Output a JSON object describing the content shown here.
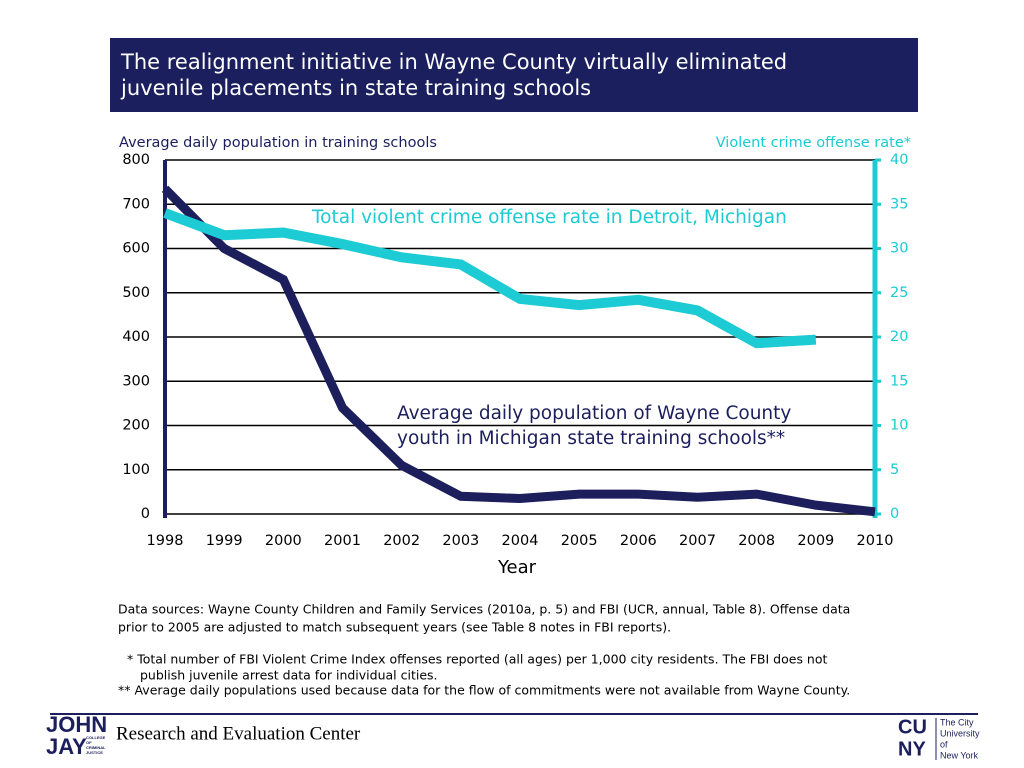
{
  "header": {
    "title": [
      "The realignment initiative in Wayne County virtually eliminated",
      "juvenile placements in state training schools"
    ]
  },
  "chart_data": {
    "type": "line",
    "ylabel": "Average daily population in training schools",
    "y2label": "Violent crime offense rate*",
    "xlabel": "Year",
    "categories": [
      "1998",
      "1999",
      "2000",
      "2001",
      "2002",
      "2003",
      "2004",
      "2005",
      "2006",
      "2007",
      "2008",
      "2009",
      "2010"
    ],
    "series": [
      {
        "name": "Average daily population of Wayne County youth in Michigan state training schools**",
        "color": "#1c1f5c",
        "axis": "y",
        "values": [
          735,
          600,
          530,
          240,
          110,
          40,
          35,
          45,
          45,
          38,
          45,
          20,
          5
        ]
      },
      {
        "name": "Total violent crime offense rate in Detroit, Michigan",
        "color": "#1ccbd3",
        "axis": "y2",
        "values": [
          34,
          31.5,
          31.8,
          30.5,
          29,
          28.2,
          24.3,
          23.6,
          24.2,
          23,
          19.3,
          19.7,
          null
        ]
      }
    ],
    "annotations": [
      {
        "lines": [
          "Total violent crime offense rate in Detroit, Michigan"
        ],
        "series": 1
      },
      {
        "lines": [
          "Average daily population of Wayne County",
          "youth in Michigan state training schools**"
        ],
        "series": 0
      }
    ],
    "ylim": [
      0,
      800
    ],
    "yticks": [
      0,
      100,
      200,
      300,
      400,
      500,
      600,
      700,
      800
    ],
    "y2lim": [
      0,
      40
    ],
    "y2ticks": [
      0,
      5,
      10,
      15,
      20,
      25,
      30,
      35,
      40
    ],
    "grid": true
  },
  "notes": {
    "sources": [
      "Data sources: Wayne County Children and Family Services (2010a, p. 5) and FBI (UCR, annual, Table 8). Offense data",
      "prior to 2005 are adjusted to match subsequent years (see Table 8 notes in FBI reports)."
    ],
    "footnotes": [
      "* Total number of FBI Violent Crime Index offenses reported (all ages) per 1,000 city residents. The FBI does not",
      "publish juvenile arrest data for individual cities.",
      "** Average daily populations used because data for the flow of commitments were not available from Wayne County."
    ]
  },
  "footer": {
    "text": "Research and Evaluation Center",
    "left_logo": [
      "JOHN",
      "JAY",
      "COLLEGE",
      "OF",
      "CRIMINAL",
      "JUSTICE"
    ],
    "right_logo": [
      "CU",
      "NY",
      "The City",
      "University",
      "of",
      "New York"
    ]
  }
}
